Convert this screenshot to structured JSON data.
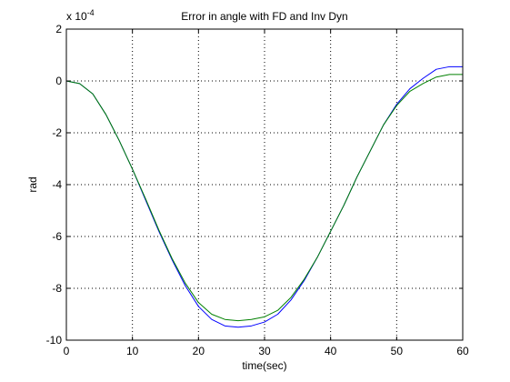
{
  "chart_data": {
    "type": "line",
    "title": "Error in angle with FD and Inv Dyn",
    "xlabel": "time(sec)",
    "ylabel": "rad",
    "y_multiplier_label": "x 10",
    "y_multiplier_exponent": "-4",
    "xlim": [
      0,
      60
    ],
    "ylim": [
      -10,
      2
    ],
    "x_ticks": [
      0,
      10,
      20,
      30,
      40,
      50,
      60
    ],
    "y_ticks": [
      -10,
      -8,
      -6,
      -4,
      -2,
      0,
      2
    ],
    "x_tick_labels": [
      "0",
      "10",
      "20",
      "30",
      "40",
      "50",
      "60"
    ],
    "y_tick_labels": [
      "-10",
      "-8",
      "-6",
      "-4",
      "-2",
      "0",
      "2"
    ],
    "grid": true,
    "grid_style": "dotted",
    "series": [
      {
        "color": "#0000ff",
        "x": [
          0,
          2,
          4,
          6,
          8,
          10,
          12,
          14,
          16,
          18,
          20,
          22,
          24,
          26,
          28,
          30,
          32,
          34,
          36,
          38,
          40,
          42,
          44,
          46,
          48,
          50,
          52,
          54,
          56,
          58,
          60
        ],
        "y": [
          0,
          -0.1,
          -0.5,
          -1.3,
          -2.3,
          -3.4,
          -4.6,
          -5.8,
          -6.9,
          -7.9,
          -8.7,
          -9.2,
          -9.45,
          -9.5,
          -9.45,
          -9.3,
          -9.0,
          -8.45,
          -7.7,
          -6.8,
          -5.8,
          -4.8,
          -3.7,
          -2.7,
          -1.7,
          -0.9,
          -0.3,
          0.1,
          0.45,
          0.55,
          0.55
        ]
      },
      {
        "color": "#008000",
        "x": [
          0,
          2,
          4,
          6,
          8,
          10,
          12,
          14,
          16,
          18,
          20,
          22,
          24,
          26,
          28,
          30,
          32,
          34,
          36,
          38,
          40,
          42,
          44,
          46,
          48,
          50,
          52,
          54,
          56,
          58,
          60
        ],
        "y": [
          0,
          -0.1,
          -0.5,
          -1.3,
          -2.3,
          -3.4,
          -4.55,
          -5.75,
          -6.85,
          -7.8,
          -8.55,
          -9.0,
          -9.2,
          -9.25,
          -9.2,
          -9.1,
          -8.85,
          -8.35,
          -7.65,
          -6.8,
          -5.8,
          -4.8,
          -3.7,
          -2.7,
          -1.7,
          -0.95,
          -0.4,
          -0.1,
          0.15,
          0.25,
          0.25
        ]
      }
    ]
  }
}
